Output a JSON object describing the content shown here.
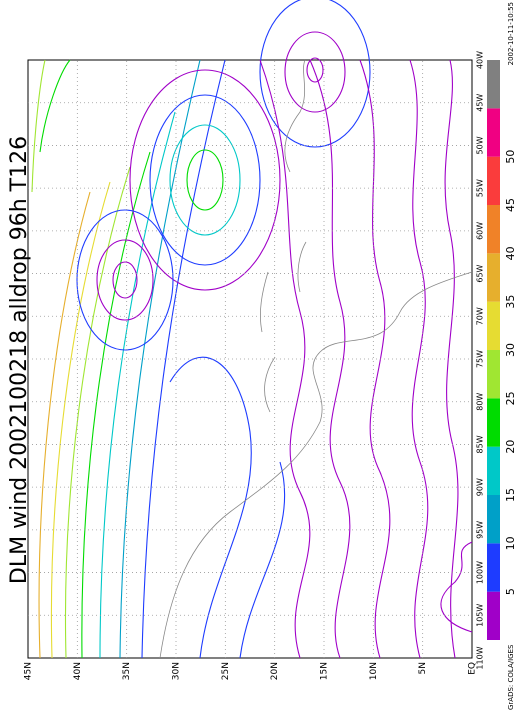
{
  "title": "DLM wind 2002100218 alldrop 96h T126",
  "latitude_labels": [
    "45N",
    "40N",
    "35N",
    "30N",
    "25N",
    "20N",
    "15N",
    "10N",
    "5N",
    "EQ"
  ],
  "longitude_labels": [
    "110W",
    "105W",
    "100W",
    "95W",
    "90W",
    "85W",
    "80W",
    "75W",
    "70W",
    "65W",
    "60W",
    "55W",
    "50W",
    "45W",
    "40W"
  ],
  "colorbar": {
    "labels": [
      5,
      10,
      15,
      20,
      25,
      30,
      35,
      40,
      45,
      50
    ],
    "colors": [
      "#a000c8",
      "#1e3cff",
      "#00a0c8",
      "#00c8c8",
      "#00dc00",
      "#a0e632",
      "#e6dc32",
      "#e6af2d",
      "#f08228",
      "#fa3c3c",
      "#f00082",
      "#808080"
    ]
  },
  "footer": "GrADS: COLA/IGES",
  "timestamp": "2002-10-11-10:55"
}
